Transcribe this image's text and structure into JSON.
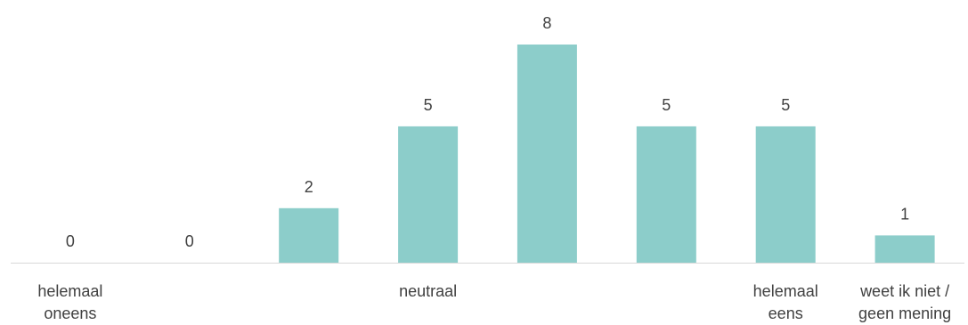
{
  "chart_data": {
    "type": "bar",
    "title": "",
    "xlabel": "",
    "ylabel": "",
    "ylim": [
      0,
      8
    ],
    "grid": false,
    "legend": "none",
    "bar_color": "#8ccdca",
    "categories": [
      [
        "helemaal",
        "oneens"
      ],
      [],
      [],
      [
        "neutraal"
      ],
      [],
      [],
      [
        "helemaal",
        "eens"
      ],
      [
        "weet ik niet /",
        "geen mening"
      ]
    ],
    "values": [
      0,
      0,
      2,
      5,
      8,
      5,
      5,
      1
    ],
    "data_labels": [
      "0",
      "0",
      "2",
      "5",
      "8",
      "5",
      "5",
      "1"
    ]
  }
}
